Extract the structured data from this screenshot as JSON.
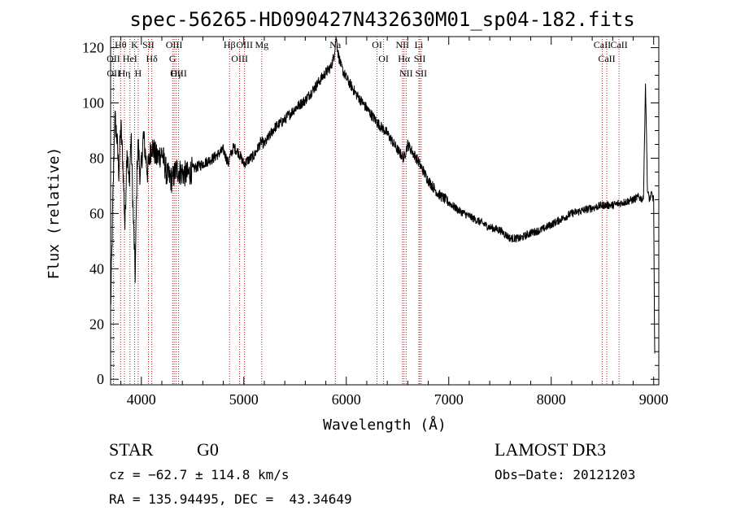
{
  "chart_data": {
    "type": "line",
    "title": "spec-56265-HD090427N432630M01_sp04-182.fits",
    "xlabel": "Wavelength (Å)",
    "ylabel": "Flux (relative)",
    "xlim": [
      3700,
      9050
    ],
    "ylim": [
      -2,
      124
    ],
    "xticks": [
      4000,
      5000,
      6000,
      7000,
      8000,
      9000
    ],
    "yticks": [
      0,
      20,
      40,
      60,
      80,
      100,
      120
    ],
    "series": [
      {
        "name": "spectrum",
        "x": [
          3700,
          3720,
          3740,
          3760,
          3780,
          3800,
          3820,
          3840,
          3860,
          3880,
          3900,
          3920,
          3940,
          3960,
          3970,
          3990,
          4020,
          4060,
          4100,
          4150,
          4200,
          4250,
          4300,
          4340,
          4380,
          4450,
          4500,
          4600,
          4700,
          4800,
          4850,
          4860,
          4900,
          4950,
          5000,
          5100,
          5170,
          5200,
          5300,
          5400,
          5500,
          5600,
          5700,
          5800,
          5850,
          5880,
          5900,
          5920,
          5950,
          6000,
          6100,
          6200,
          6300,
          6400,
          6500,
          6560,
          6600,
          6700,
          6800,
          6900,
          7000,
          7100,
          7200,
          7300,
          7400,
          7500,
          7600,
          7700,
          7800,
          7900,
          8000,
          8100,
          8200,
          8300,
          8400,
          8500,
          8600,
          8700,
          8800,
          8850,
          8900,
          8920,
          8940,
          8960,
          8980,
          9000,
          9010
        ],
        "y": [
          25,
          60,
          95,
          88,
          75,
          92,
          78,
          55,
          85,
          70,
          88,
          60,
          38,
          80,
          85,
          72,
          88,
          75,
          85,
          80,
          82,
          74,
          72,
          76,
          75,
          74,
          76,
          78,
          80,
          83,
          78,
          80,
          84,
          82,
          78,
          81,
          86,
          85,
          91,
          94,
          98,
          101,
          106,
          111,
          113,
          117,
          124,
          118,
          113,
          109,
          103,
          98,
          93,
          89,
          83,
          80,
          85,
          79,
          72,
          67,
          64,
          61,
          59,
          57,
          55,
          54,
          51,
          51,
          53,
          54,
          56,
          58,
          60,
          61,
          62,
          63,
          63,
          64,
          65,
          66,
          65,
          107,
          68,
          65,
          67,
          65,
          8
        ]
      }
    ],
    "lines": [
      {
        "name": "Hθ",
        "wl": 3798
      },
      {
        "name": "OII",
        "wl": 3727
      },
      {
        "name": "OII",
        "wl": 3729
      },
      {
        "name": "Hη",
        "wl": 3835
      },
      {
        "name": "HeI",
        "wl": 3889
      },
      {
        "name": "K",
        "wl": 3934
      },
      {
        "name": "H",
        "wl": 3969
      },
      {
        "name": "SII",
        "wl": 4069
      },
      {
        "name": "Hδ",
        "wl": 4102
      },
      {
        "name": "OIII",
        "wl": 4320
      },
      {
        "name": "G",
        "wl": 4305
      },
      {
        "name": "Hγ",
        "wl": 4340
      },
      {
        "name": "OIII",
        "wl": 4363
      },
      {
        "name": "Hβ",
        "wl": 4861
      },
      {
        "name": "OIII",
        "wl": 4959
      },
      {
        "name": "OIII",
        "wl": 5007
      },
      {
        "name": "Mg",
        "wl": 5175
      },
      {
        "name": "Na",
        "wl": 5893
      },
      {
        "name": "OI",
        "wl": 6300
      },
      {
        "name": "OI",
        "wl": 6364
      },
      {
        "name": "NII",
        "wl": 6548
      },
      {
        "name": "Hα",
        "wl": 6563
      },
      {
        "name": "NII",
        "wl": 6584
      },
      {
        "name": "Li",
        "wl": 6708
      },
      {
        "name": "SII",
        "wl": 6717
      },
      {
        "name": "SII",
        "wl": 6731
      },
      {
        "name": "CaII",
        "wl": 8498
      },
      {
        "name": "CaII",
        "wl": 8542
      },
      {
        "name": "CaII",
        "wl": 8662
      }
    ]
  },
  "info": {
    "class": "STAR",
    "subclass": "G0",
    "survey": "LAMOST DR3",
    "cz": "cz = −62.7 ± 114.8 km/s",
    "obs_date": "Obs−Date: 20121203",
    "radec": "RA = 135.94495, DEC =  43.34649"
  },
  "colors": {
    "axis": "#000000",
    "spectrum": "#000000",
    "line_marker": "#b22222"
  }
}
